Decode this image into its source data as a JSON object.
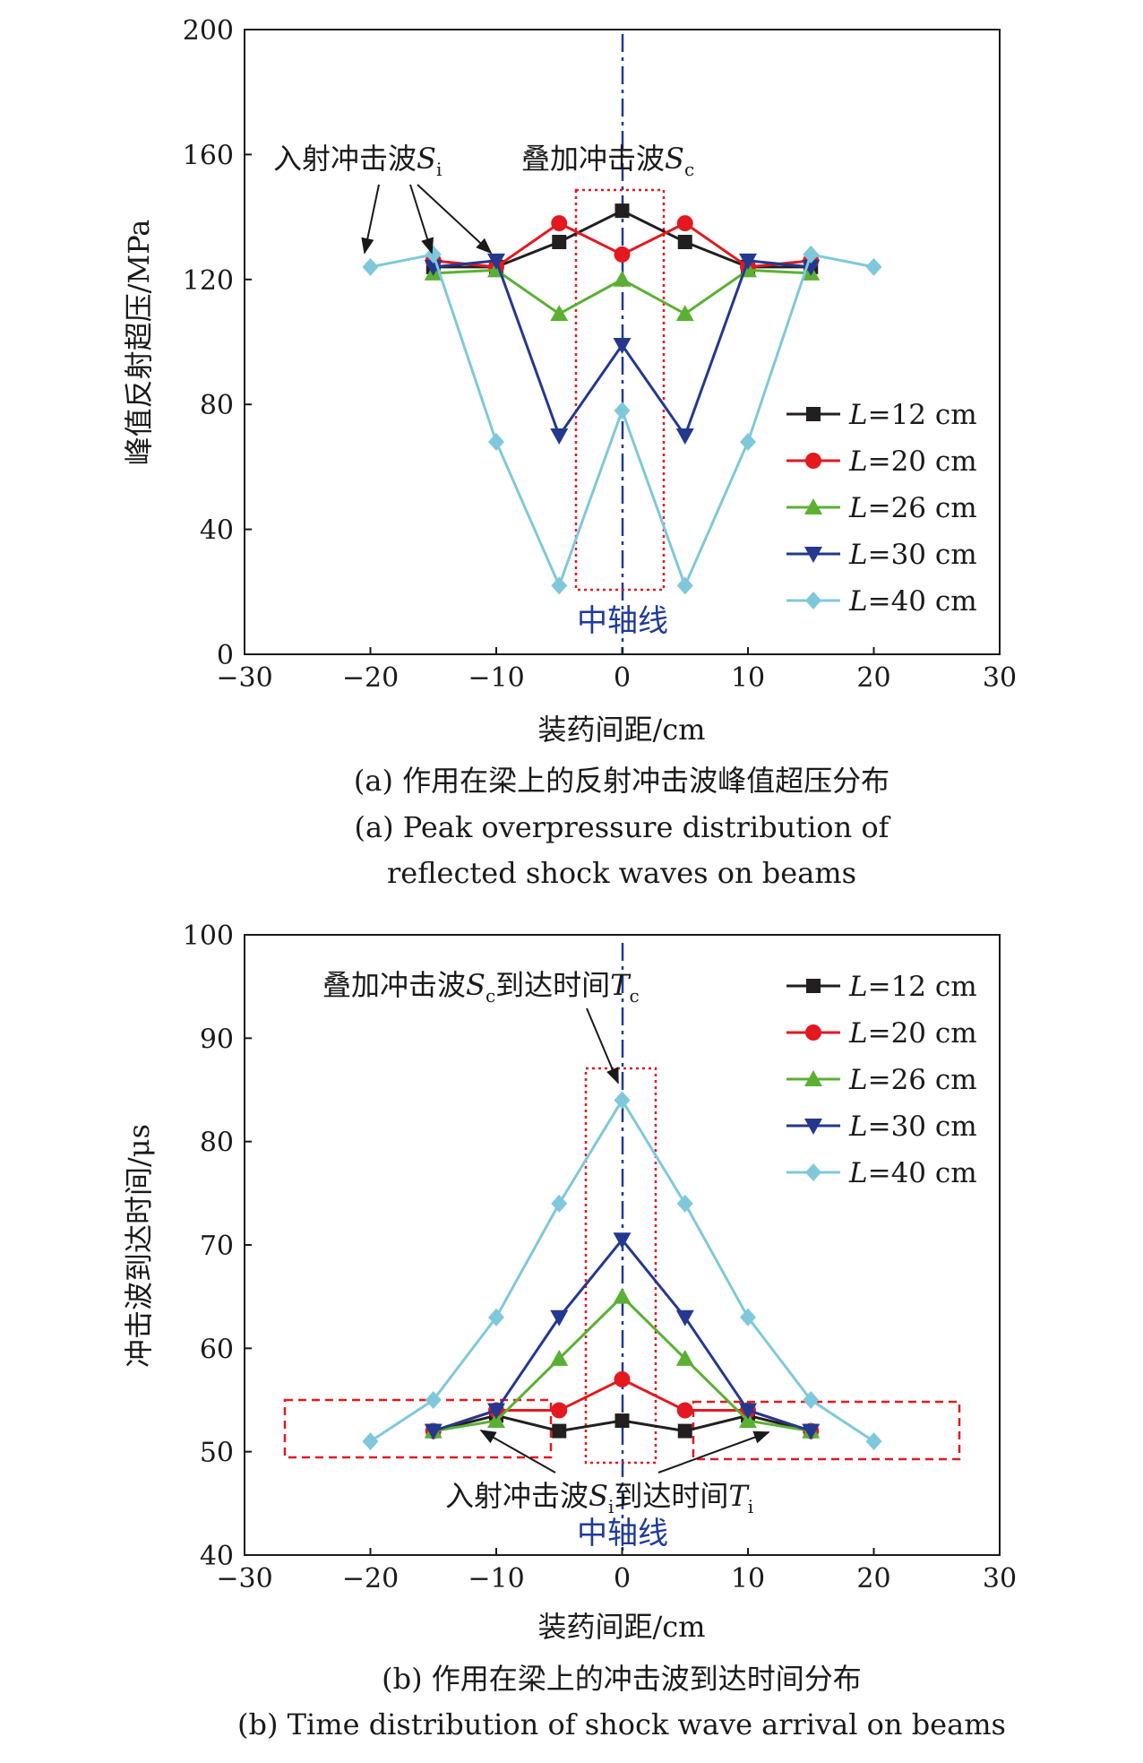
{
  "colors": {
    "L12": "#231f20",
    "L20": "#e3191f",
    "L26": "#5bb033",
    "L30": "#24388f",
    "L40": "#7fc8dc",
    "axis_line": "#1f3a9a",
    "box": "#e3191f"
  },
  "chart_data": [
    {
      "type": "line",
      "xlabel": "装药间距/cm",
      "ylabel": "峰值反射超压/MPa",
      "xlim": [
        -30,
        30
      ],
      "ylim": [
        0,
        200
      ],
      "xticks": [
        -30,
        -20,
        -10,
        0,
        10,
        20,
        30
      ],
      "yticks": [
        0,
        40,
        80,
        120,
        160,
        200
      ],
      "xtick_labels": [
        "−30",
        "−20",
        "−10",
        "0",
        "10",
        "20",
        "30"
      ],
      "ytick_labels": [
        "0",
        "40",
        "80",
        "120",
        "160",
        "200"
      ],
      "legend_position": "right",
      "caption_cn": "(a) 作用在梁上的反射冲击波峰值超压分布",
      "caption_en_1": "(a) Peak overpressure distribution of",
      "caption_en_2": "reflected shock waves on beams",
      "annotations": {
        "incident_prefix": "入射冲击波",
        "incident_var": "S",
        "incident_sub": "i",
        "superposed_prefix": "叠加冲击波",
        "superposed_var": "S",
        "superposed_sub": "c",
        "center_axis": "中轴线"
      },
      "series": [
        {
          "name": "L=12 cm",
          "legend_var": "L",
          "legend_rest": "=12 cm",
          "marker": "square",
          "color_key": "L12",
          "x": [
            -15,
            -10,
            -5,
            0,
            5,
            10,
            15
          ],
          "y": [
            124,
            124,
            132,
            142,
            132,
            124,
            124
          ]
        },
        {
          "name": "L=20 cm",
          "legend_var": "L",
          "legend_rest": "=20 cm",
          "marker": "circle",
          "color_key": "L20",
          "x": [
            -15,
            -10,
            -5,
            0,
            5,
            10,
            15
          ],
          "y": [
            126,
            124,
            138,
            128,
            138,
            124,
            126
          ]
        },
        {
          "name": "L=26 cm",
          "legend_var": "L",
          "legend_rest": "=26 cm",
          "marker": "triangle-up",
          "color_key": "L26",
          "x": [
            -15,
            -10,
            -5,
            0,
            5,
            10,
            15
          ],
          "y": [
            122,
            123,
            109,
            120,
            109,
            123,
            122
          ]
        },
        {
          "name": "L=30 cm",
          "legend_var": "L",
          "legend_rest": "=30 cm",
          "marker": "triangle-down",
          "color_key": "L30",
          "x": [
            -15,
            -10,
            -5,
            0,
            5,
            10,
            15
          ],
          "y": [
            124,
            126,
            70,
            99,
            70,
            126,
            124
          ]
        },
        {
          "name": "L=40 cm",
          "legend_var": "L",
          "legend_rest": "=40 cm",
          "marker": "diamond",
          "color_key": "L40",
          "x": [
            -20,
            -15,
            -10,
            -5,
            0,
            5,
            10,
            15,
            20
          ],
          "y": [
            124,
            128,
            68,
            22,
            78,
            22,
            68,
            128,
            124
          ]
        }
      ]
    },
    {
      "type": "line",
      "xlabel": "装药间距/cm",
      "ylabel": "冲击波到达时间/μs",
      "xlim": [
        -30,
        30
      ],
      "ylim": [
        40,
        100
      ],
      "xticks": [
        -30,
        -20,
        -10,
        0,
        10,
        20,
        30
      ],
      "yticks": [
        40,
        50,
        60,
        70,
        80,
        90,
        100
      ],
      "xtick_labels": [
        "−30",
        "−20",
        "−10",
        "0",
        "10",
        "20",
        "30"
      ],
      "ytick_labels": [
        "40",
        "50",
        "60",
        "70",
        "80",
        "90",
        "100"
      ],
      "legend_position": "top-right",
      "caption_cn": "(b) 作用在梁上的冲击波到达时间分布",
      "caption_en": "(b) Time distribution of shock wave arrival on beams",
      "annotations": {
        "superposed_prefix": "叠加冲击波",
        "superposed_var": "S",
        "superposed_sub": "c",
        "superposed_mid": "到达时间",
        "superposed_var2": "T",
        "superposed_sub2": "c",
        "incident_prefix": "入射冲击波",
        "incident_var": "S",
        "incident_sub": "i",
        "incident_mid": "到达时间",
        "incident_var2": "T",
        "incident_sub2": "i",
        "center_axis": "中轴线"
      },
      "series": [
        {
          "name": "L=12 cm",
          "legend_var": "L",
          "legend_rest": "=12 cm",
          "marker": "square",
          "color_key": "L12",
          "x": [
            -15,
            -10,
            -5,
            0,
            5,
            10,
            15
          ],
          "y": [
            52,
            53.5,
            52,
            53,
            52,
            53.5,
            52
          ]
        },
        {
          "name": "L=20 cm",
          "legend_var": "L",
          "legend_rest": "=20 cm",
          "marker": "circle",
          "color_key": "L20",
          "x": [
            -15,
            -10,
            -5,
            0,
            5,
            10,
            15
          ],
          "y": [
            52,
            54,
            54,
            57,
            54,
            54,
            52
          ]
        },
        {
          "name": "L=26 cm",
          "legend_var": "L",
          "legend_rest": "=26 cm",
          "marker": "triangle-up",
          "color_key": "L26",
          "x": [
            -15,
            -10,
            -5,
            0,
            5,
            10,
            15
          ],
          "y": [
            52,
            53,
            59,
            65,
            59,
            53,
            52
          ]
        },
        {
          "name": "L=30 cm",
          "legend_var": "L",
          "legend_rest": "=30 cm",
          "marker": "triangle-down",
          "color_key": "L30",
          "x": [
            -15,
            -10,
            -5,
            0,
            5,
            10,
            15
          ],
          "y": [
            52,
            54,
            63,
            70.5,
            63,
            54,
            52
          ]
        },
        {
          "name": "L=40 cm",
          "legend_var": "L",
          "legend_rest": "=40 cm",
          "marker": "diamond",
          "color_key": "L40",
          "x": [
            -20,
            -15,
            -10,
            -5,
            0,
            5,
            10,
            15,
            20
          ],
          "y": [
            51,
            55,
            63,
            74,
            84,
            74,
            63,
            55,
            51
          ]
        }
      ]
    }
  ]
}
